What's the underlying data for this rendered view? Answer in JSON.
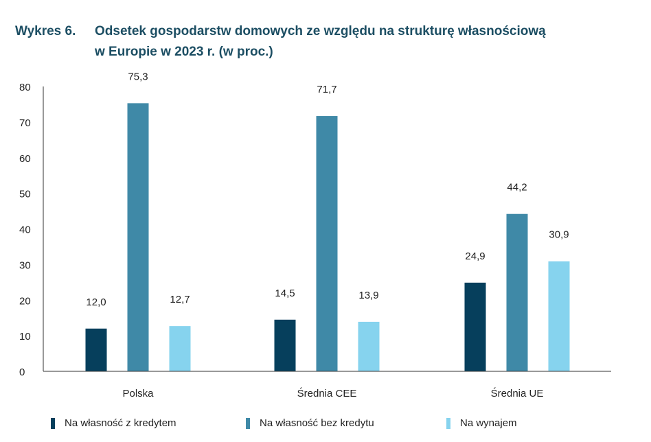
{
  "title": {
    "number": "Wykres 6.",
    "line1": "Odsetek gospodarstw domowych ze względu na strukturę własnościową",
    "line2": "w Europie w 2023 r. (w proc.)"
  },
  "chart_data": {
    "type": "bar",
    "title": "Wykres 6. Odsetek gospodarstw domowych ze względu na strukturę własnościową w Europie w 2023 r. (w proc.)",
    "xlabel": "",
    "ylabel": "",
    "ylim": [
      0,
      80
    ],
    "yticks": [
      0,
      10,
      20,
      30,
      40,
      50,
      60,
      70,
      80
    ],
    "ytick_labels": [
      "0",
      "10",
      "20",
      "30",
      "40",
      "50",
      "60",
      "70",
      "80"
    ],
    "grid": false,
    "legend_position": "bottom",
    "categories": [
      "Polska",
      "Średnia CEE",
      "Średnia UE"
    ],
    "series": [
      {
        "name": "Na własność z kredytem",
        "color": "#063f5c",
        "values": [
          12.0,
          14.5,
          24.9
        ],
        "labels": [
          "12,0",
          "14,5",
          "24,9"
        ]
      },
      {
        "name": "Na własność bez kredytu",
        "color": "#3f89a7",
        "values": [
          75.3,
          71.7,
          44.2
        ],
        "labels": [
          "75,3",
          "71,7",
          "44,2"
        ]
      },
      {
        "name": "Na wynajem",
        "color": "#86d3ee",
        "values": [
          12.7,
          13.9,
          30.9
        ],
        "labels": [
          "12,7",
          "13,9",
          "30,9"
        ]
      }
    ]
  }
}
